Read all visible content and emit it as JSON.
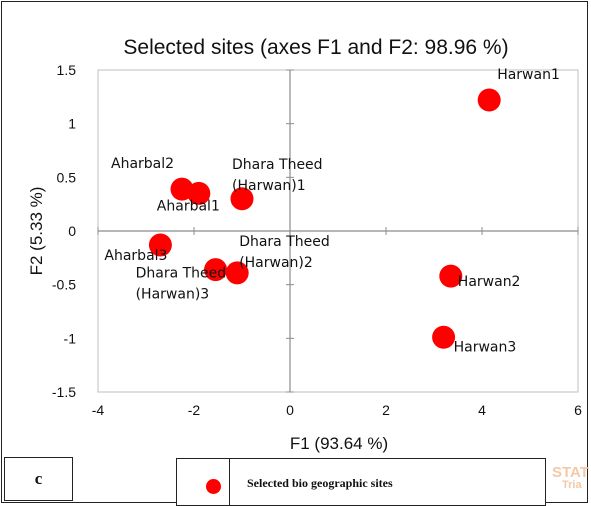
{
  "chart_data": {
    "type": "scatter",
    "title": "Selected sites (axes F1 and F2: 98.96 %)",
    "xlabel": "F1 (93.64 %)",
    "ylabel": "F2 (5.33 %)",
    "xlim": [
      -4,
      6
    ],
    "ylim": [
      -1.5,
      1.5
    ],
    "xticks": [
      "-4",
      "-2",
      "0",
      "2",
      "4",
      "6"
    ],
    "yticks": [
      "1.5",
      "1",
      "0.5",
      "0",
      "-0.5",
      "-1",
      "-1.5"
    ],
    "grid": false,
    "point_color": "#ff0000",
    "points": [
      {
        "name": "Harwan1",
        "label_lines": [
          "Harwan1"
        ],
        "x": 4.15,
        "y": 1.22
      },
      {
        "name": "Aharbal2",
        "label_lines": [
          "Aharbal2"
        ],
        "x": -2.25,
        "y": 0.39
      },
      {
        "name": "Aharbal1",
        "label_lines": [
          "Aharbal1"
        ],
        "x": -1.9,
        "y": 0.35
      },
      {
        "name": "Dhara Theed (Harwan)1",
        "label_lines": [
          "Dhara Theed",
          "(Harwan)1"
        ],
        "x": -1.0,
        "y": 0.3
      },
      {
        "name": "Aharbal3",
        "label_lines": [
          "Aharbal3"
        ],
        "x": -2.7,
        "y": -0.13
      },
      {
        "name": "Dhara Theed (Harwan)3",
        "label_lines": [
          "Dhara Theed",
          "(Harwan)3"
        ],
        "x": -1.55,
        "y": -0.36
      },
      {
        "name": "Dhara Theed (Harwan)2",
        "label_lines": [
          "Dhara Theed",
          "(Harwan)2"
        ],
        "x": -1.1,
        "y": -0.39
      },
      {
        "name": "Harwan2",
        "label_lines": [
          "Harwan2"
        ],
        "x": 3.35,
        "y": -0.42
      },
      {
        "name": "Harwan3",
        "label_lines": [
          "Harwan3"
        ],
        "x": 3.2,
        "y": -0.99
      }
    ]
  },
  "panel_letter": "c",
  "legend": {
    "label": "Selected bio geographic sites",
    "marker_color": "#ff0000"
  },
  "watermark": {
    "line1": "STAT",
    "line2": "Tria"
  }
}
